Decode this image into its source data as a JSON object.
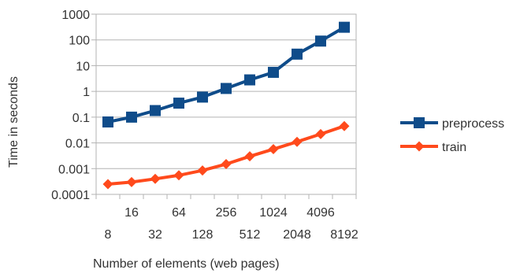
{
  "chart_data": {
    "type": "line",
    "xlabel": "Number of elements (web pages)",
    "ylabel": "Time in seconds",
    "x_scale": "log2",
    "y_scale": "log10",
    "x": [
      8,
      16,
      32,
      64,
      128,
      256,
      512,
      1024,
      2048,
      4096,
      8192
    ],
    "y_ticks": [
      0.0001,
      0.001,
      0.01,
      0.1,
      1,
      10,
      100,
      1000
    ],
    "y_tick_labels": [
      "0.0001",
      "0.001",
      "0.01",
      "0.1",
      "1",
      "10",
      "100",
      "1000"
    ],
    "x_tick_labels": [
      "8",
      "16",
      "32",
      "64",
      "128",
      "256",
      "512",
      "1024",
      "2048",
      "4096",
      "8192"
    ],
    "ylim": [
      0.0001,
      1000
    ],
    "grid": true,
    "legend_position": "right",
    "series": [
      {
        "name": "preprocess",
        "color": "#0f4c8a",
        "marker": "square",
        "values": [
          0.065,
          0.1,
          0.18,
          0.35,
          0.6,
          1.3,
          2.8,
          5.5,
          28,
          90,
          310
        ]
      },
      {
        "name": "train",
        "color": "#ff4a1c",
        "marker": "diamond",
        "values": [
          0.00025,
          0.0003,
          0.0004,
          0.00055,
          0.00085,
          0.0015,
          0.003,
          0.0057,
          0.011,
          0.022,
          0.045
        ]
      }
    ]
  }
}
